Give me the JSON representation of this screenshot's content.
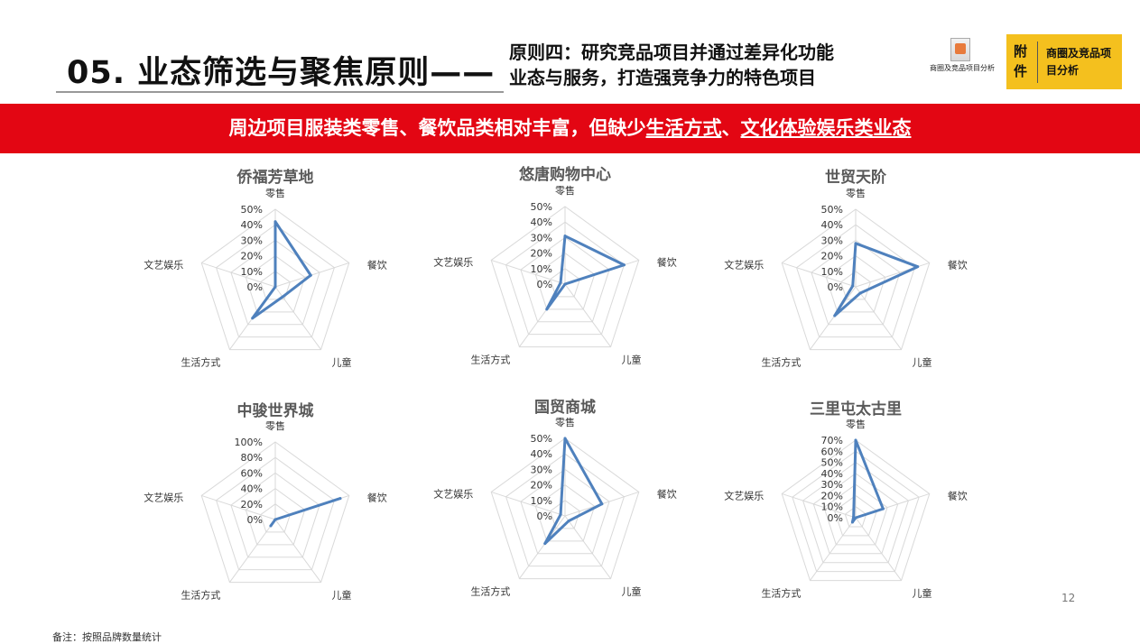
{
  "header": {
    "title": "05. 业态筛选与聚焦原则——",
    "principle_line1": "原则四：研究竞品项目并通过差异化功能",
    "principle_line2": "业态与服务，打造强竞争力的特色项目",
    "report_icon_label": "商圈及竞品项目分析",
    "tag_left": "附件",
    "tag_right": "商圈及竞品项目分析"
  },
  "banner": {
    "part1": "周边项目服装类零售、餐饮品类相对丰富，但缺少",
    "highlight1": "生活方式",
    "part2": "、",
    "highlight2": "文化体验娱乐类业态"
  },
  "colors": {
    "banner_red": "#e30613",
    "tag_yellow": "#f4c01e",
    "series_blue": "#4f81bd"
  },
  "footer": {
    "page_number": "12",
    "note": "备注：按照品牌数量统计"
  },
  "chart_data": [
    {
      "type": "radar",
      "title": "侨福芳草地",
      "axes": [
        "零售",
        "餐饮",
        "儿童",
        "生活方式",
        "文艺娱乐"
      ],
      "values": [
        0.42,
        0.24,
        0.08,
        0.25,
        0.0
      ],
      "ylim": [
        0,
        0.5
      ],
      "ticks": [
        "0%",
        "10%",
        "20%",
        "30%",
        "40%",
        "50%"
      ]
    },
    {
      "type": "radar",
      "title": "悠唐购物中心",
      "axes": [
        "零售",
        "餐饮",
        "儿童",
        "生活方式",
        "文艺娱乐"
      ],
      "values": [
        0.31,
        0.4,
        0.0,
        0.2,
        0.03
      ],
      "ylim": [
        0,
        0.5
      ],
      "ticks": [
        "0%",
        "10%",
        "20%",
        "30%",
        "40%",
        "50%"
      ]
    },
    {
      "type": "radar",
      "title": "世贸天阶",
      "axes": [
        "零售",
        "餐饮",
        "儿童",
        "生活方式",
        "文艺娱乐"
      ],
      "values": [
        0.28,
        0.42,
        0.05,
        0.23,
        0.02
      ],
      "ylim": [
        0,
        0.5
      ],
      "ticks": [
        "0%",
        "10%",
        "20%",
        "30%",
        "40%",
        "50%"
      ]
    },
    {
      "type": "radar",
      "title": "中骏世界城",
      "axes": [
        "零售",
        "餐饮",
        "儿童",
        "生活方式",
        "文艺娱乐"
      ],
      "values": [
        0.0,
        0.88,
        0.0,
        0.1,
        0.0
      ],
      "ylim": [
        0,
        1.0
      ],
      "ticks": [
        "0%",
        "20%",
        "40%",
        "60%",
        "80%",
        "100%"
      ]
    },
    {
      "type": "radar",
      "title": "国贸商城",
      "axes": [
        "零售",
        "餐饮",
        "儿童",
        "生活方式",
        "文艺娱乐"
      ],
      "values": [
        0.5,
        0.25,
        0.04,
        0.22,
        0.03
      ],
      "ylim": [
        0,
        0.5
      ],
      "ticks": [
        "0%",
        "10%",
        "20%",
        "30%",
        "40%",
        "50%"
      ]
    },
    {
      "type": "radar",
      "title": "三里屯太古里",
      "axes": [
        "零售",
        "餐饮",
        "儿童",
        "生活方式",
        "文艺娱乐"
      ],
      "values": [
        0.7,
        0.26,
        0.0,
        0.05,
        0.02
      ],
      "ylim": [
        0,
        0.7
      ],
      "ticks": [
        "0%",
        "10%",
        "20%",
        "30%",
        "40%",
        "50%",
        "60%",
        "70%"
      ]
    }
  ]
}
